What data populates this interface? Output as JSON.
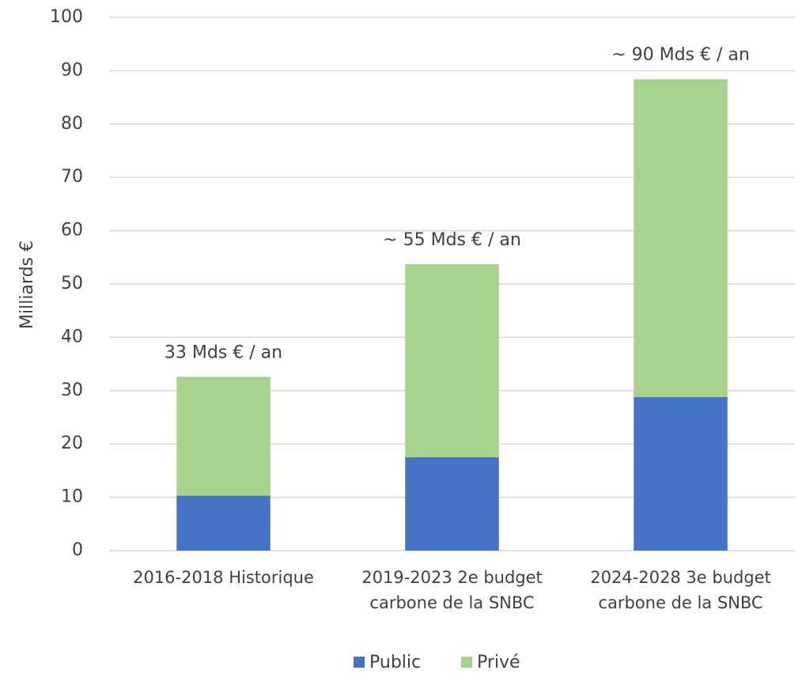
{
  "chart_data": {
    "type": "stacked_bar",
    "y_axis_label": "Milliards €",
    "categories": [
      "2016-2018 Historique",
      "2019-2023 2e budget carbone de la SNBC",
      "2024-2028 3e budget carbone de la SNBC"
    ],
    "series": [
      {
        "name": "Public",
        "color": "#4472c4",
        "values": [
          10.3,
          17.5,
          28.8
        ]
      },
      {
        "name": "Privé",
        "color": "#a9d18e",
        "values": [
          22.3,
          36.2,
          59.6
        ]
      }
    ],
    "annotations": [
      "33 Mds € / an",
      "~ 55 Mds € / an",
      "~ 90 Mds € / an"
    ],
    "ylim": [
      0,
      100
    ],
    "yticks": [
      0,
      10,
      20,
      30,
      40,
      50,
      60,
      70,
      80,
      90,
      100
    ],
    "grid": true,
    "legend": "bottom"
  }
}
